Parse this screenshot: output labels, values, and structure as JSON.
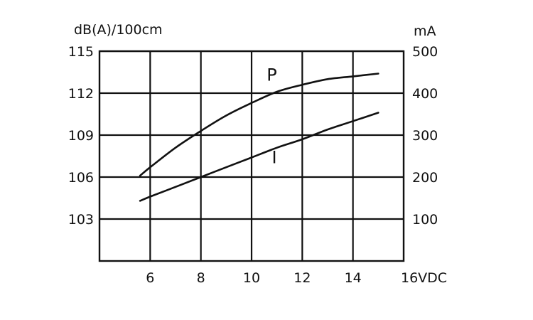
{
  "chart_data": {
    "type": "line",
    "title": "",
    "xlabel": "16VDC",
    "ylabel_left": "dB(A)/100cm",
    "ylabel_right": "mA",
    "x_range": [
      4,
      16
    ],
    "x_ticks": [
      6,
      8,
      10,
      12,
      14
    ],
    "x_tick_labels": [
      "6",
      "8",
      "10",
      "12",
      "14"
    ],
    "x_end_label": "16VDC",
    "y_left_range": [
      100,
      115
    ],
    "y_left_ticks": [
      103,
      106,
      109,
      112,
      115
    ],
    "y_left_tick_labels": [
      "103",
      "106",
      "109",
      "112",
      "115"
    ],
    "y_right_ticks": [
      100,
      200,
      300,
      400,
      500
    ],
    "y_right_tick_labels": [
      "100",
      "200",
      "300",
      "400",
      "500"
    ],
    "grid": true,
    "series": [
      {
        "name": "P",
        "axis": "left",
        "x": [
          5.6,
          6,
          7,
          8,
          9,
          10,
          11,
          12,
          13,
          14,
          15
        ],
        "y": [
          106.1,
          106.7,
          108.1,
          109.3,
          110.4,
          111.3,
          112.1,
          112.6,
          113.0,
          113.2,
          113.4
        ]
      },
      {
        "name": "I",
        "axis": "left",
        "x": [
          5.6,
          6,
          7,
          8,
          9,
          10,
          11,
          12,
          13,
          14,
          15
        ],
        "y": [
          104.3,
          104.6,
          105.3,
          106.0,
          106.7,
          107.4,
          108.1,
          108.7,
          109.4,
          110.0,
          110.6
        ]
      }
    ]
  }
}
